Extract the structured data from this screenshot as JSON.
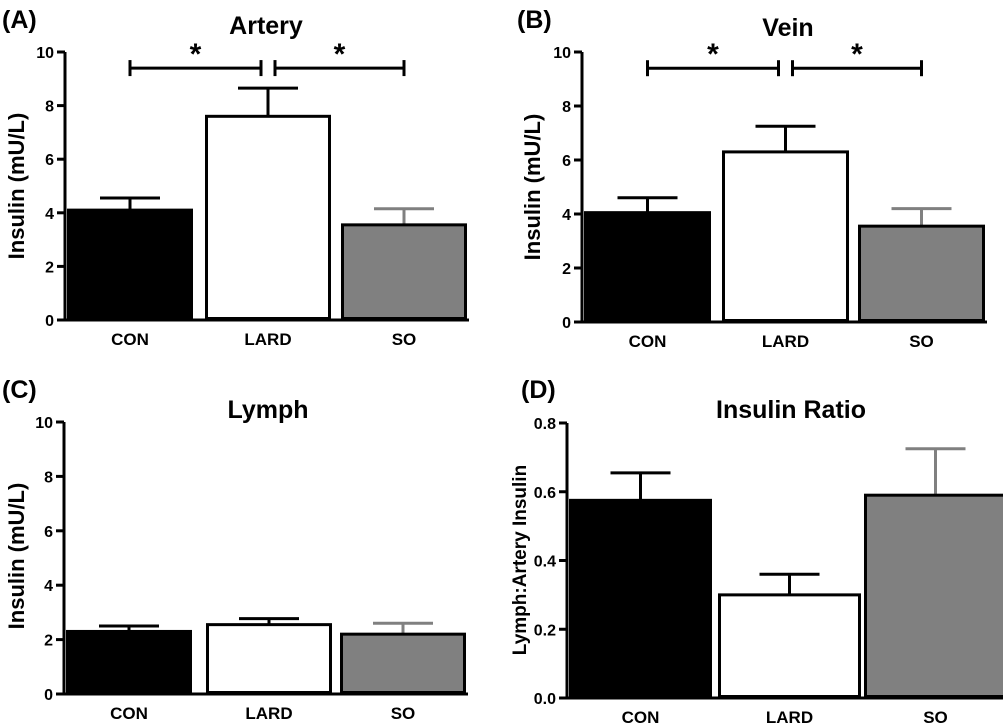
{
  "colors": {
    "CON": "#000000",
    "LARD": "#ffffff",
    "SO": "#808080",
    "axis": "#000000",
    "so_error": "#808080"
  },
  "chart_data": [
    {
      "panel": "(A)",
      "type": "bar",
      "title": "Artery",
      "xlabel": "",
      "ylabel": "Insulin (mU/L)",
      "categories": [
        "CON",
        "LARD",
        "SO"
      ],
      "values": [
        4.1,
        7.6,
        3.55
      ],
      "errors": [
        0.45,
        1.05,
        0.6
      ],
      "ylim": [
        0,
        10
      ],
      "yticks": [
        "0",
        "2",
        "4",
        "6",
        "8",
        "10"
      ],
      "significance": [
        {
          "from": "CON",
          "to": "LARD",
          "y": 9.4,
          "label": "*"
        },
        {
          "from": "LARD",
          "to": "SO",
          "y": 9.4,
          "label": "*"
        }
      ]
    },
    {
      "panel": "(B)",
      "type": "bar",
      "title": "Vein",
      "xlabel": "",
      "ylabel": "Insulin (mU/L)",
      "categories": [
        "CON",
        "LARD",
        "SO"
      ],
      "values": [
        4.05,
        6.3,
        3.55
      ],
      "errors": [
        0.55,
        0.95,
        0.65
      ],
      "ylim": [
        0,
        10
      ],
      "yticks": [
        "0",
        "2",
        "4",
        "6",
        "8",
        "10"
      ],
      "significance": [
        {
          "from": "CON",
          "to": "LARD",
          "y": 9.4,
          "label": "*"
        },
        {
          "from": "LARD",
          "to": "SO",
          "y": 9.4,
          "label": "*"
        }
      ]
    },
    {
      "panel": "(C)",
      "type": "bar",
      "title": "Lymph",
      "xlabel": "",
      "ylabel": "Insulin (mU/L)",
      "categories": [
        "CON",
        "LARD",
        "SO"
      ],
      "values": [
        2.3,
        2.55,
        2.2
      ],
      "errors": [
        0.2,
        0.22,
        0.4
      ],
      "ylim": [
        0,
        10
      ],
      "yticks": [
        "0",
        "2",
        "4",
        "6",
        "8",
        "10"
      ],
      "significance": []
    },
    {
      "panel": "(D)",
      "type": "bar",
      "title": "Insulin Ratio",
      "xlabel": "",
      "ylabel": "Lymph:Artery Insulin",
      "categories": [
        "CON",
        "LARD",
        "SO"
      ],
      "values": [
        0.575,
        0.3,
        0.59
      ],
      "errors": [
        0.08,
        0.06,
        0.135
      ],
      "ylim": [
        0,
        0.8
      ],
      "yticks": [
        "0.0",
        "0.2",
        "0.4",
        "0.6",
        "0.8"
      ],
      "significance": []
    }
  ]
}
